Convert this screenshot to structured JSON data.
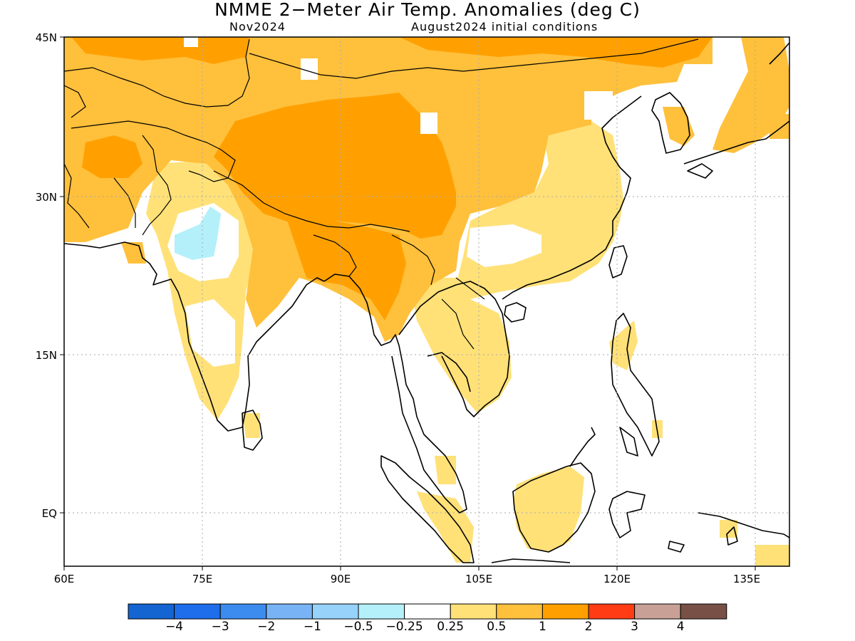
{
  "title": "NMME 2−Meter Air Temp. Anomalies (deg C)",
  "subtitle_left": "Nov2024",
  "subtitle_right": "August2024 initial conditions",
  "lon_ticks": [
    "60E",
    "75E",
    "90E",
    "105E",
    "120E",
    "135E"
  ],
  "lat_ticks": [
    "45N",
    "30N",
    "15N",
    "EQ"
  ],
  "colorbar": {
    "colors": [
      "#1464d2",
      "#1e6eeb",
      "#3c8cf0",
      "#78b4f5",
      "#96d2fa",
      "#b4f0fa",
      "#ffffff",
      "#ffe178",
      "#ffc03c",
      "#ffa000",
      "#ff3c14",
      "#c8a096",
      "#785046"
    ],
    "labels": [
      "−4",
      "−3",
      "−2",
      "−1",
      "−0.5",
      "−0.25",
      "0.25",
      "0.5",
      "1",
      "2",
      "3",
      "4"
    ]
  },
  "colors": {
    "anom_025_05": "#ffe178",
    "anom_05_1": "#ffc03c",
    "anom_1_2": "#ffa000",
    "anom_neg_05_025": "#b4f0fa",
    "coast": "#000000",
    "grid": "#aaaaaa"
  }
}
